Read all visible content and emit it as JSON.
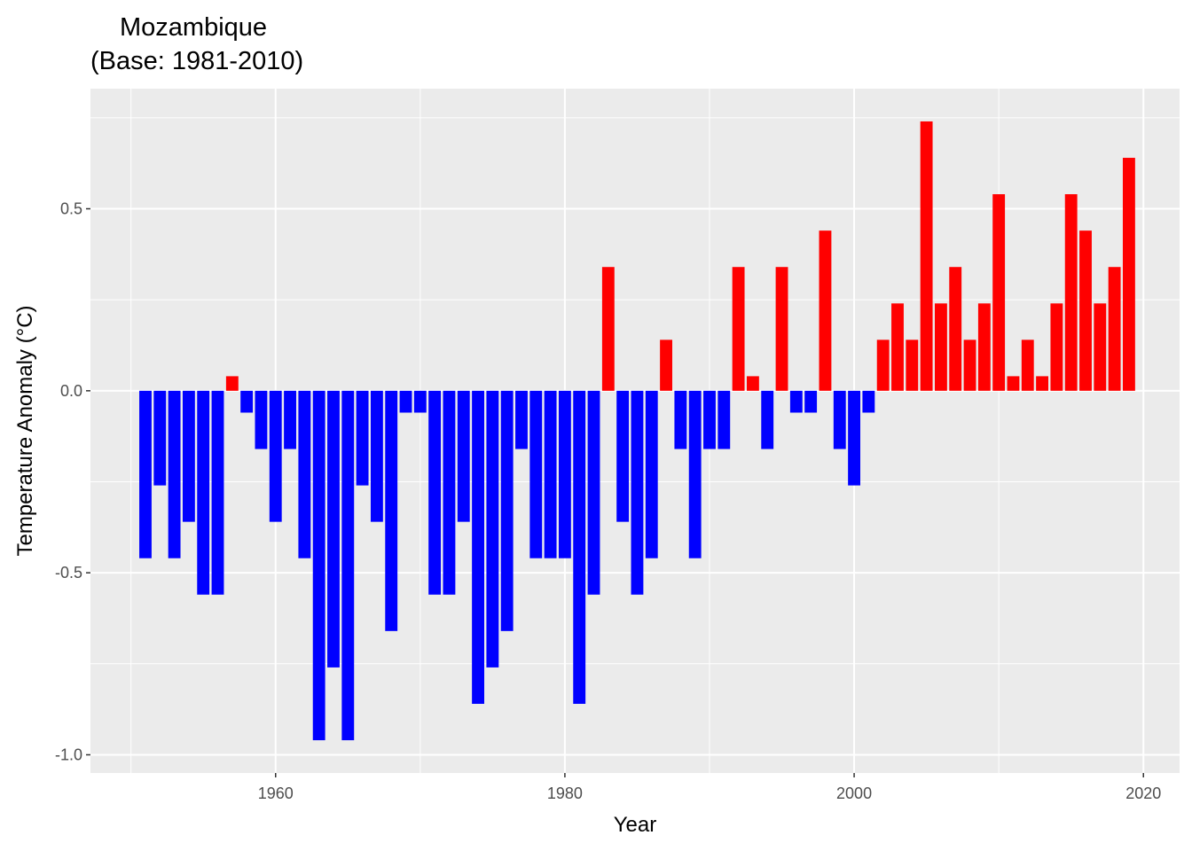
{
  "chart_data": {
    "type": "bar",
    "title": "Mozambique",
    "subtitle": "(Base: 1981-2010)",
    "xlabel": "Year",
    "ylabel": "Temperature Anomaly (°C)",
    "x_ticks": [
      "1960",
      "1980",
      "2000",
      "2020"
    ],
    "y_ticks": [
      "-1.0",
      "-0.5",
      "0.0",
      "0.5"
    ],
    "xlim": [
      1947.2,
      2022.5
    ],
    "ylim": [
      -1.05,
      0.83
    ],
    "grid": true,
    "panel_background": "#ebebeb",
    "positive_color": "#ff0000",
    "negative_color": "#0000ff",
    "years": [
      1951,
      1952,
      1953,
      1954,
      1955,
      1956,
      1957,
      1958,
      1959,
      1960,
      1961,
      1962,
      1963,
      1964,
      1965,
      1966,
      1967,
      1968,
      1969,
      1970,
      1971,
      1972,
      1973,
      1974,
      1975,
      1976,
      1977,
      1978,
      1979,
      1980,
      1981,
      1982,
      1983,
      1984,
      1985,
      1986,
      1987,
      1988,
      1989,
      1990,
      1991,
      1992,
      1993,
      1994,
      1995,
      1996,
      1997,
      1998,
      1999,
      2000,
      2001,
      2002,
      2003,
      2004,
      2005,
      2006,
      2007,
      2008,
      2009,
      2010,
      2011,
      2012,
      2013,
      2014,
      2015,
      2016,
      2017,
      2018,
      2019
    ],
    "values": [
      -0.46,
      -0.26,
      -0.46,
      -0.36,
      -0.56,
      -0.56,
      0.04,
      -0.06,
      -0.16,
      -0.36,
      -0.16,
      -0.46,
      -0.96,
      -0.76,
      -0.96,
      -0.26,
      -0.36,
      -0.66,
      -0.06,
      -0.06,
      -0.56,
      -0.56,
      -0.36,
      -0.86,
      -0.76,
      -0.66,
      -0.16,
      -0.46,
      -0.46,
      -0.46,
      -0.86,
      -0.56,
      0.34,
      -0.36,
      -0.56,
      -0.46,
      0.14,
      -0.16,
      -0.46,
      -0.16,
      -0.16,
      0.34,
      0.04,
      -0.16,
      0.34,
      -0.06,
      -0.06,
      0.44,
      -0.16,
      -0.26,
      -0.06,
      0.14,
      0.24,
      0.14,
      0.74,
      0.24,
      0.34,
      0.14,
      0.24,
      0.54,
      0.04,
      0.14,
      0.04,
      0.24,
      0.54,
      0.44,
      0.24,
      0.34,
      0.64
    ]
  }
}
